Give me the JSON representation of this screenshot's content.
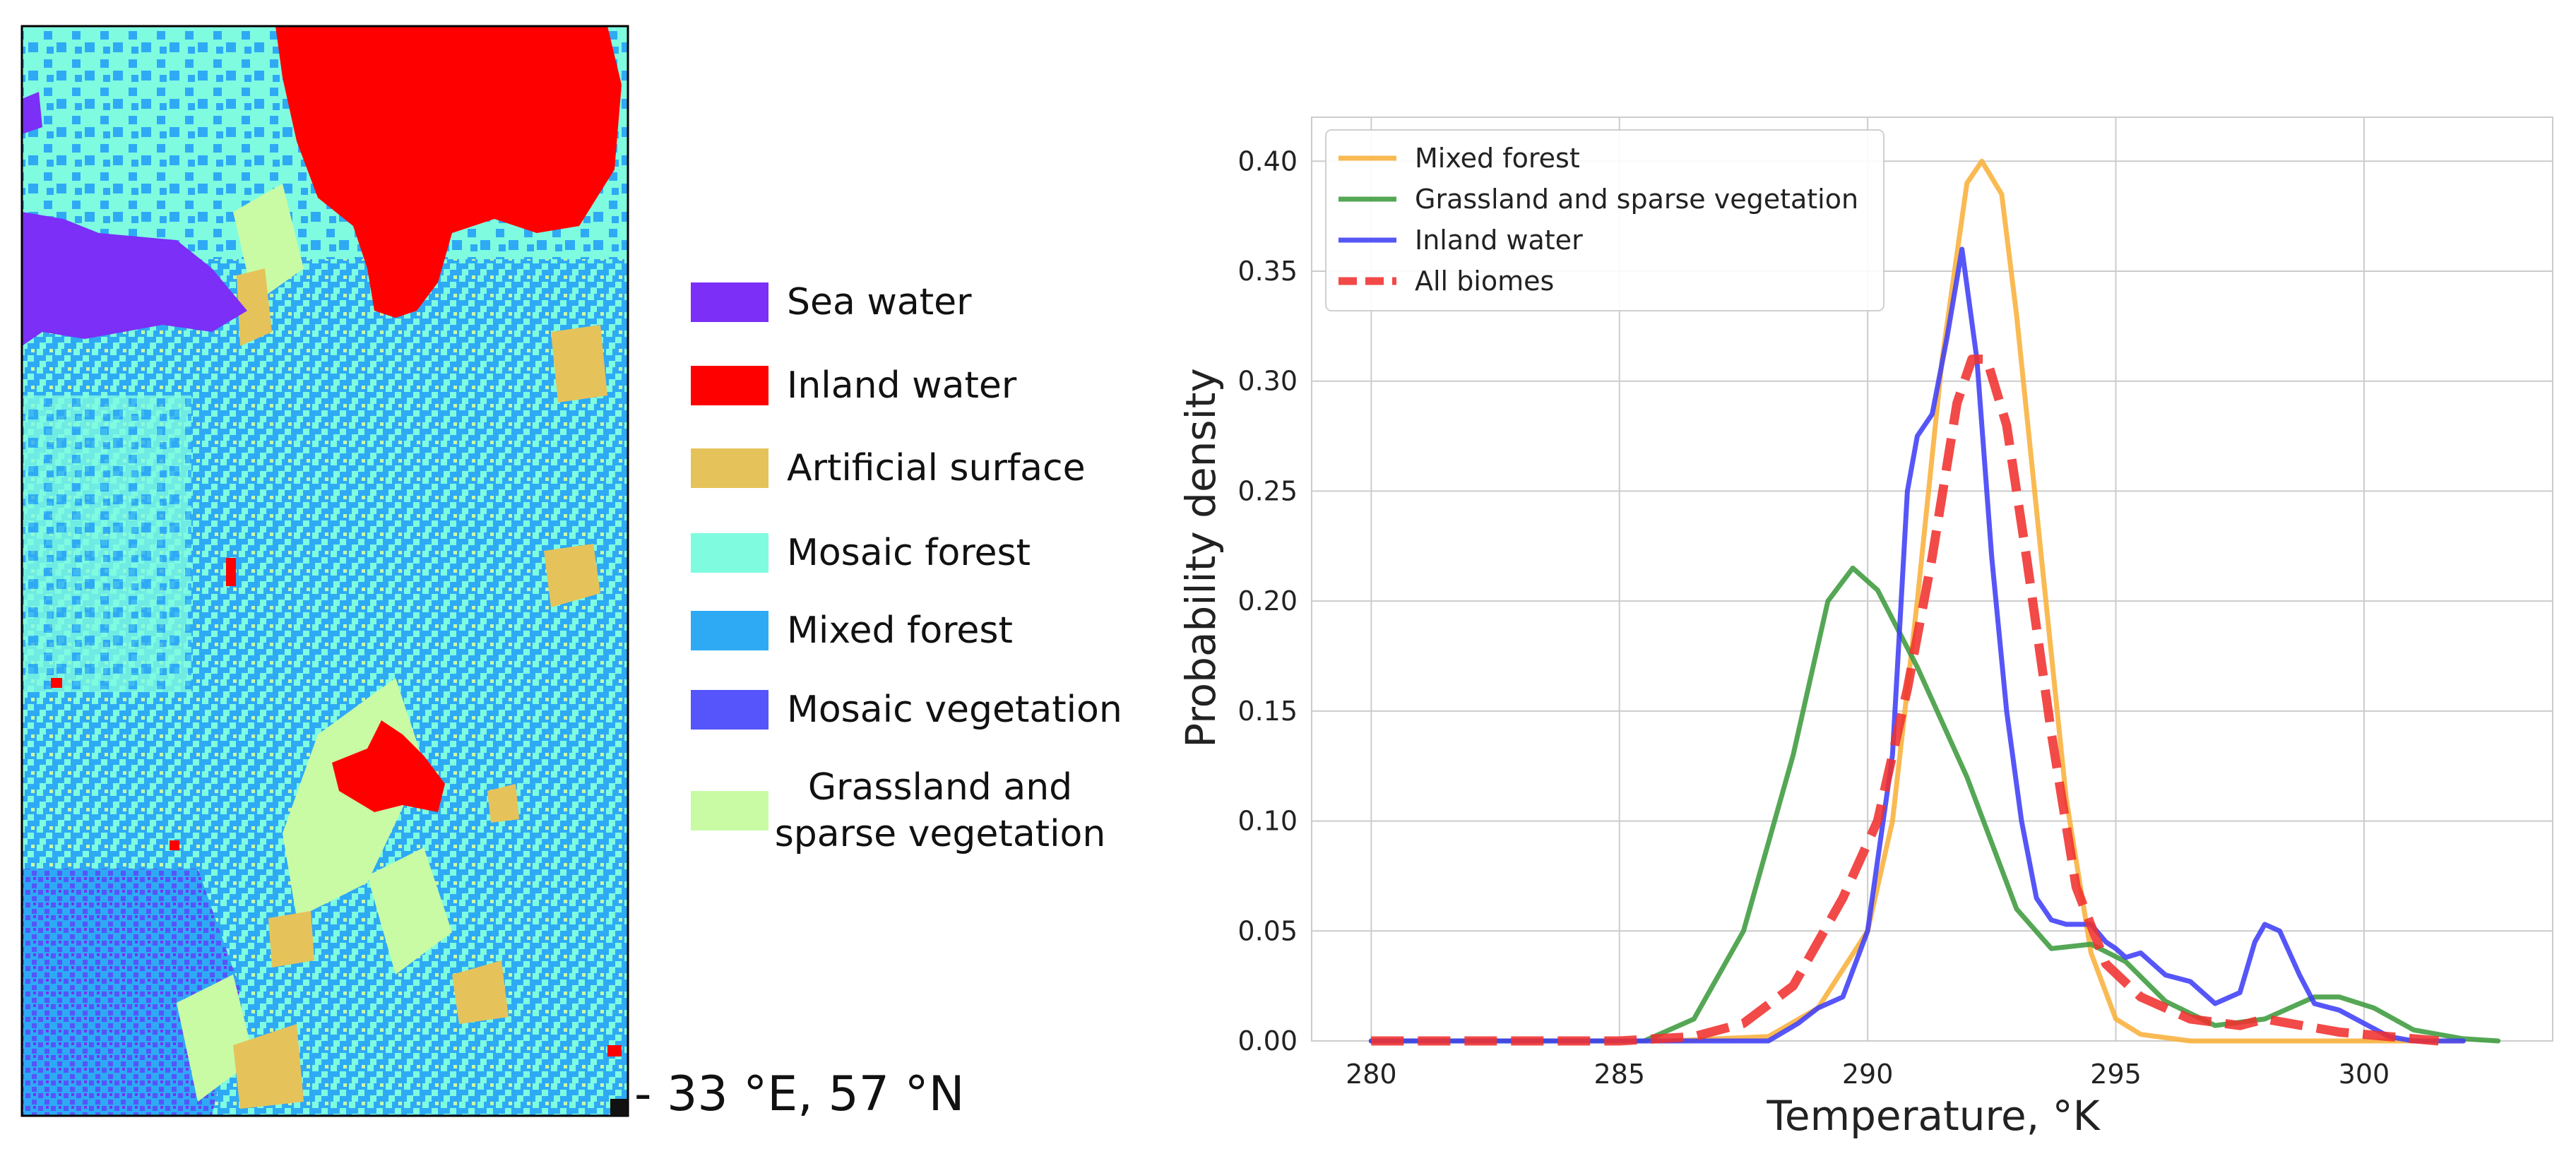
{
  "map": {
    "coordinate_label": "- 33 °E, 57 °N",
    "legend": [
      {
        "label": "Sea water",
        "color": "#7b2ff7"
      },
      {
        "label": "Inland water",
        "color": "#ff0000"
      },
      {
        "label": "Artificial surface",
        "color": "#e5c35a"
      },
      {
        "label": "Mosaic forest",
        "color": "#7ffbe0"
      },
      {
        "label": "Mixed forest",
        "color": "#2eaaf5"
      },
      {
        "label": "Mosaic vegetation",
        "color": "#5555fb"
      },
      {
        "label": "Grassland and sparse vegetation",
        "color": "#c9fba5"
      }
    ]
  },
  "chart_data": {
    "type": "line",
    "title": "",
    "xlabel": "Temperature, °K",
    "ylabel": "Probability density",
    "xlim": [
      278.8,
      303.8
    ],
    "ylim": [
      0,
      0.42
    ],
    "xticks": [
      280,
      285,
      290,
      295,
      300
    ],
    "yticks": [
      0.0,
      0.05,
      0.1,
      0.15,
      0.2,
      0.25,
      0.3,
      0.35,
      0.4
    ],
    "xtick_labels": [
      "280",
      "285",
      "290",
      "295",
      "300"
    ],
    "ytick_labels": [
      "0.00",
      "0.05",
      "0.10",
      "0.15",
      "0.20",
      "0.25",
      "0.30",
      "0.35",
      "0.40"
    ],
    "grid": true,
    "legend_position": "top-left",
    "series": [
      {
        "name": "Mixed forest",
        "color": "#f9b13b",
        "dash": false,
        "points": [
          [
            280,
            0
          ],
          [
            286,
            0
          ],
          [
            288,
            0.002
          ],
          [
            289,
            0.015
          ],
          [
            290,
            0.05
          ],
          [
            290.5,
            0.1
          ],
          [
            291,
            0.2
          ],
          [
            291.5,
            0.31
          ],
          [
            292,
            0.39
          ],
          [
            292.3,
            0.4
          ],
          [
            292.7,
            0.385
          ],
          [
            293,
            0.33
          ],
          [
            293.5,
            0.22
          ],
          [
            294,
            0.11
          ],
          [
            294.5,
            0.04
          ],
          [
            295,
            0.01
          ],
          [
            295.5,
            0.003
          ],
          [
            296.5,
            0
          ],
          [
            302,
            0
          ]
        ]
      },
      {
        "name": "Grassland and sparse vegetation",
        "color": "#3d9b3d",
        "dash": false,
        "points": [
          [
            280,
            0
          ],
          [
            285.5,
            0
          ],
          [
            286.5,
            0.01
          ],
          [
            287.5,
            0.05
          ],
          [
            288.5,
            0.13
          ],
          [
            289.2,
            0.2
          ],
          [
            289.7,
            0.215
          ],
          [
            290.2,
            0.205
          ],
          [
            291,
            0.17
          ],
          [
            292,
            0.12
          ],
          [
            293,
            0.06
          ],
          [
            293.7,
            0.042
          ],
          [
            294.5,
            0.044
          ],
          [
            295.2,
            0.036
          ],
          [
            296,
            0.018
          ],
          [
            297,
            0.007
          ],
          [
            298,
            0.01
          ],
          [
            299,
            0.02
          ],
          [
            299.5,
            0.02
          ],
          [
            300.2,
            0.015
          ],
          [
            301,
            0.005
          ],
          [
            302,
            0.001
          ],
          [
            302.7,
            0
          ]
        ]
      },
      {
        "name": "Inland water",
        "color": "#3f3ff7",
        "dash": false,
        "points": [
          [
            280,
            0
          ],
          [
            288,
            0
          ],
          [
            288.6,
            0.008
          ],
          [
            289,
            0.015
          ],
          [
            289.5,
            0.02
          ],
          [
            290,
            0.05
          ],
          [
            290.5,
            0.13
          ],
          [
            290.8,
            0.25
          ],
          [
            291,
            0.275
          ],
          [
            291.3,
            0.285
          ],
          [
            291.6,
            0.32
          ],
          [
            291.9,
            0.36
          ],
          [
            292.2,
            0.31
          ],
          [
            292.5,
            0.22
          ],
          [
            292.8,
            0.15
          ],
          [
            293.1,
            0.1
          ],
          [
            293.4,
            0.065
          ],
          [
            293.7,
            0.055
          ],
          [
            294,
            0.053
          ],
          [
            294.5,
            0.053
          ],
          [
            294.8,
            0.045
          ],
          [
            295,
            0.042
          ],
          [
            295.2,
            0.038
          ],
          [
            295.5,
            0.04
          ],
          [
            296,
            0.03
          ],
          [
            296.5,
            0.027
          ],
          [
            297,
            0.017
          ],
          [
            297.5,
            0.022
          ],
          [
            297.8,
            0.045
          ],
          [
            298,
            0.053
          ],
          [
            298.3,
            0.05
          ],
          [
            298.7,
            0.03
          ],
          [
            299,
            0.017
          ],
          [
            299.5,
            0.014
          ],
          [
            300,
            0.008
          ],
          [
            300.5,
            0.002
          ],
          [
            301,
            0
          ],
          [
            302,
            0
          ]
        ]
      },
      {
        "name": "All biomes",
        "color": "#f0312f",
        "dash": true,
        "points": [
          [
            280,
            0
          ],
          [
            285,
            0
          ],
          [
            286.5,
            0.002
          ],
          [
            287.5,
            0.008
          ],
          [
            288.5,
            0.025
          ],
          [
            289.5,
            0.065
          ],
          [
            290.2,
            0.1
          ],
          [
            290.8,
            0.16
          ],
          [
            291.3,
            0.22
          ],
          [
            291.8,
            0.29
          ],
          [
            292.1,
            0.31
          ],
          [
            292.4,
            0.31
          ],
          [
            292.8,
            0.28
          ],
          [
            293.2,
            0.22
          ],
          [
            293.7,
            0.14
          ],
          [
            294.2,
            0.07
          ],
          [
            294.8,
            0.035
          ],
          [
            295.5,
            0.02
          ],
          [
            296.5,
            0.01
          ],
          [
            297.5,
            0.007
          ],
          [
            298,
            0.01
          ],
          [
            298.5,
            0.008
          ],
          [
            299.5,
            0.004
          ],
          [
            300.5,
            0.002
          ],
          [
            301.5,
            0
          ]
        ]
      }
    ]
  }
}
